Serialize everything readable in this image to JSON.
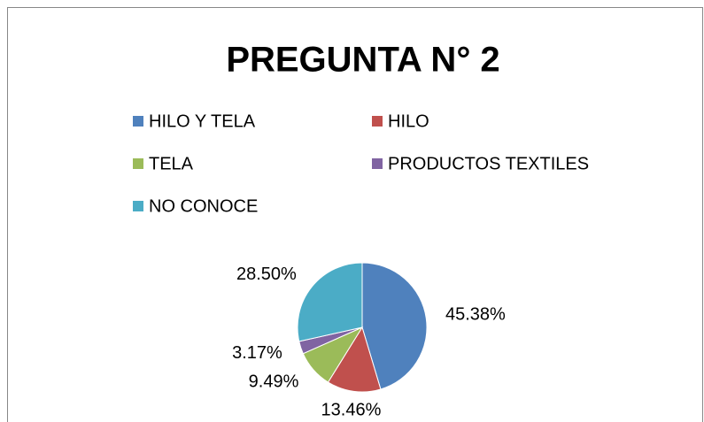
{
  "chart_data": {
    "type": "pie",
    "title": "PREGUNTA N° 2",
    "categories": [
      "HILO Y TELA",
      "HILO",
      "TELA",
      "PRODUCTOS TEXTILES",
      "NO CONOCE"
    ],
    "values": [
      45.38,
      13.46,
      9.49,
      3.17,
      28.5
    ],
    "value_labels": [
      "45.38%",
      "13.46%",
      "9.49%",
      "3.17%",
      "28.50%"
    ],
    "colors": [
      "#4f81bd",
      "#c0504d",
      "#9bbb59",
      "#8064a2",
      "#4bacc6"
    ],
    "legend": "top"
  }
}
